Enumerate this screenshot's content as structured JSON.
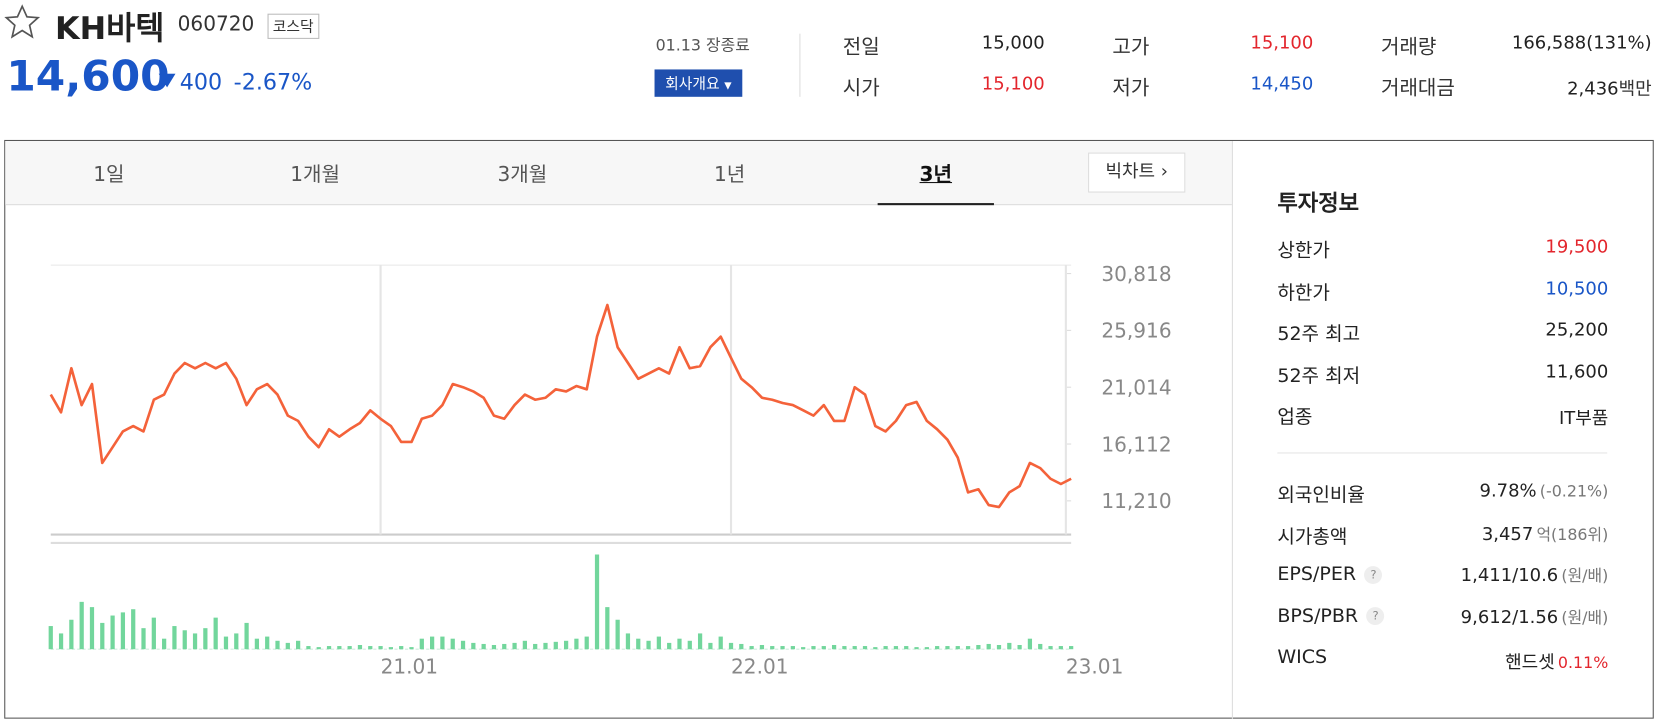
{
  "header": {
    "name": "KH바텍",
    "code": "060720",
    "market": "코스닥",
    "price": "14,600",
    "change": "400",
    "change_rate": "-2.67%",
    "status": "01.13 장종료",
    "company_button": "회사개요"
  },
  "quotes": [
    {
      "label": "전일",
      "value": "15,000",
      "color": "#222222"
    },
    {
      "label": "시가",
      "value": "15,100",
      "color": "#e3262d"
    },
    {
      "label": "고가",
      "value": "15,100",
      "color": "#e3262d"
    },
    {
      "label": "저가",
      "value": "14,450",
      "color": "#1a56c7"
    },
    {
      "label": "거래량",
      "value": "166,588(131%)",
      "color": "#222222"
    },
    {
      "label": "거래대금",
      "value": "2,436",
      "unit": "백만",
      "color": "#222222"
    }
  ],
  "tabs": {
    "items": [
      "1일",
      "1개월",
      "3개월",
      "1년",
      "3년"
    ],
    "active": 4,
    "big_chart": "빅차트"
  },
  "chart_data": [
    {
      "type": "line",
      "color": "#f4623a",
      "grid": true,
      "categories": [
        null,
        null,
        null,
        null,
        null,
        null,
        null,
        null,
        null,
        null,
        null,
        null,
        null,
        null,
        null,
        null,
        null,
        null,
        null,
        null,
        null,
        null,
        null,
        null,
        null,
        null,
        null,
        null,
        null,
        null,
        null,
        null,
        "21.01",
        null,
        null,
        null,
        null,
        null,
        null,
        null,
        null,
        null,
        null,
        null,
        null,
        null,
        null,
        null,
        null,
        null,
        null,
        null,
        null,
        null,
        null,
        null,
        null,
        null,
        null,
        null,
        null,
        null,
        null,
        null,
        null,
        null,
        "22.01",
        null,
        null,
        null,
        null,
        null,
        null,
        null,
        null,
        null,
        null,
        null,
        null,
        null,
        null,
        null,
        null,
        null,
        null,
        null,
        null,
        null,
        null,
        null,
        null,
        null,
        null,
        null,
        null,
        null,
        null,
        null,
        null,
        "23.01"
      ],
      "values": [
        20380,
        18840,
        22650,
        19470,
        21290,
        14480,
        15840,
        17200,
        17660,
        17200,
        19930,
        20380,
        22190,
        23100,
        22650,
        23100,
        22650,
        23100,
        21740,
        19470,
        20830,
        21290,
        20380,
        18560,
        18110,
        16750,
        15840,
        17380,
        16750,
        17380,
        17930,
        19020,
        18290,
        17660,
        16290,
        16290,
        18290,
        18560,
        19470,
        21290,
        21010,
        20650,
        20110,
        18560,
        18290,
        19470,
        20380,
        19930,
        20110,
        20830,
        20650,
        21110,
        20830,
        25370,
        28100,
        24460,
        23100,
        21740,
        22190,
        22650,
        22190,
        24460,
        22650,
        22830,
        24460,
        25370,
        23550,
        21740,
        21010,
        20110,
        19930,
        19650,
        19470,
        19020,
        18560,
        19470,
        18110,
        18110,
        21010,
        20380,
        17660,
        17200,
        18110,
        19470,
        19740,
        18110,
        17380,
        16480,
        14930,
        11940,
        12210,
        10850,
        10670,
        11940,
        12480,
        14480,
        14030,
        13120,
        12660,
        13120
      ],
      "ylim": [
        8305,
        31544
      ],
      "yticks": [
        {
          "value": 30818,
          "label": "30,818"
        },
        {
          "value": 25916,
          "label": "25,916"
        },
        {
          "value": 21014,
          "label": "21,014"
        },
        {
          "value": 16112,
          "label": "16,112"
        },
        {
          "value": 11210,
          "label": "11,210"
        }
      ]
    },
    {
      "type": "bar",
      "color": "#72d69c",
      "values": [
        22,
        15,
        28,
        45,
        40,
        25,
        32,
        35,
        38,
        20,
        30,
        10,
        22,
        18,
        15,
        20,
        30,
        12,
        15,
        25,
        10,
        12,
        8,
        6,
        8,
        3,
        2,
        3,
        3,
        3,
        4,
        3,
        3,
        2,
        3,
        2,
        10,
        12,
        12,
        10,
        8,
        6,
        5,
        4,
        5,
        6,
        8,
        5,
        6,
        7,
        8,
        10,
        12,
        90,
        40,
        28,
        15,
        10,
        8,
        12,
        6,
        10,
        8,
        15,
        6,
        12,
        6,
        5,
        3,
        4,
        3,
        3,
        3,
        2,
        3,
        3,
        4,
        3,
        3,
        3,
        2,
        3,
        3,
        3,
        2,
        2,
        3,
        3,
        3,
        3,
        4,
        5,
        4,
        6,
        4,
        10,
        5,
        3,
        3,
        3
      ]
    }
  ],
  "invest": {
    "title": "투자정보",
    "rows": [
      {
        "label": "상한가",
        "value": "19,500",
        "color": "#e3262d"
      },
      {
        "label": "하한가",
        "value": "10,500",
        "color": "#1a56c7"
      },
      {
        "label": "52주 최고",
        "value": "25,200",
        "color": "#222222"
      },
      {
        "label": "52주 최저",
        "value": "11,600",
        "color": "#222222"
      },
      {
        "label": "업종",
        "value": "IT부품",
        "color": "#222222"
      }
    ],
    "rows2": [
      {
        "label": "외국인비율",
        "value": "9.78%",
        "extra": "(-0.21%)",
        "color": "#222222",
        "extra_color": "#777777"
      },
      {
        "label": "시가총액",
        "value": "3,457",
        "extra": "억(186위)",
        "color": "#222222",
        "extra_color": "#777777"
      },
      {
        "label": "EPS/PER",
        "value": "1,411/10.6",
        "extra": "(원/배)",
        "help": true,
        "color": "#222222",
        "extra_color": "#777777"
      },
      {
        "label": "BPS/PBR",
        "value": "9,612/1.56",
        "extra": "(원/배)",
        "help": true,
        "color": "#222222",
        "extra_color": "#777777"
      },
      {
        "label": "WICS",
        "value": "핸드셋",
        "extra": "0.11%",
        "color": "#222222",
        "extra_color": "#e3262d"
      }
    ]
  }
}
